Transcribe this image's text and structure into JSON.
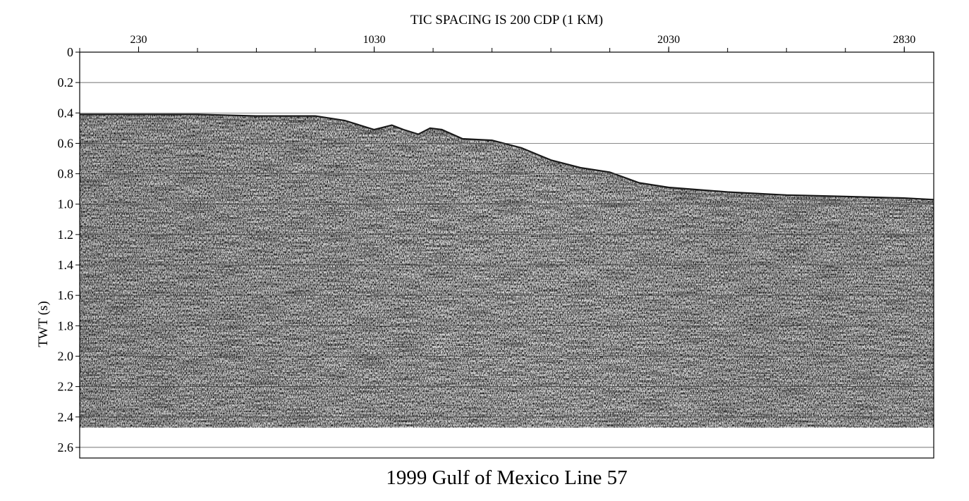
{
  "chart_data": {
    "type": "heatmap",
    "title": "1999 Gulf of Mexico Line 57",
    "subtitle": "TIC SPACING IS 200 CDP (1 KM)",
    "ylabel": "TWT (s)",
    "xlabel": "",
    "x_axis_position": "top",
    "x_tick_labels": [
      "230",
      "1030",
      "2030",
      "2830"
    ],
    "x_tick_values": [
      230,
      1030,
      2030,
      2830
    ],
    "x_minor_tick_spacing": 200,
    "xlim": [
      30,
      2930
    ],
    "y_tick_labels": [
      "0",
      "0.2",
      "0.4",
      "0.6",
      "0.8",
      "1.0",
      "1.2",
      "1.4",
      "1.6",
      "1.8",
      "2.0",
      "2.2",
      "2.4",
      "2.6"
    ],
    "y_tick_values": [
      0,
      0.2,
      0.4,
      0.6,
      0.8,
      1.0,
      1.2,
      1.4,
      1.6,
      1.8,
      2.0,
      2.2,
      2.4,
      2.6
    ],
    "ylim": [
      0,
      2.67
    ],
    "y_inverted": true,
    "grid": true,
    "data_end_twt": 2.47,
    "seafloor": {
      "x": [
        30,
        230,
        430,
        630,
        830,
        930,
        1030,
        1090,
        1130,
        1180,
        1220,
        1260,
        1330,
        1430,
        1530,
        1630,
        1730,
        1830,
        1930,
        2030,
        2230,
        2430,
        2630,
        2830,
        2930
      ],
      "twt": [
        0.41,
        0.41,
        0.41,
        0.42,
        0.42,
        0.45,
        0.51,
        0.48,
        0.51,
        0.54,
        0.5,
        0.51,
        0.57,
        0.58,
        0.63,
        0.71,
        0.76,
        0.79,
        0.86,
        0.89,
        0.92,
        0.94,
        0.95,
        0.96,
        0.97
      ]
    },
    "colors": {
      "reflector": "#1a1a1a",
      "background": "#ffffff",
      "grid": "#444444"
    }
  }
}
